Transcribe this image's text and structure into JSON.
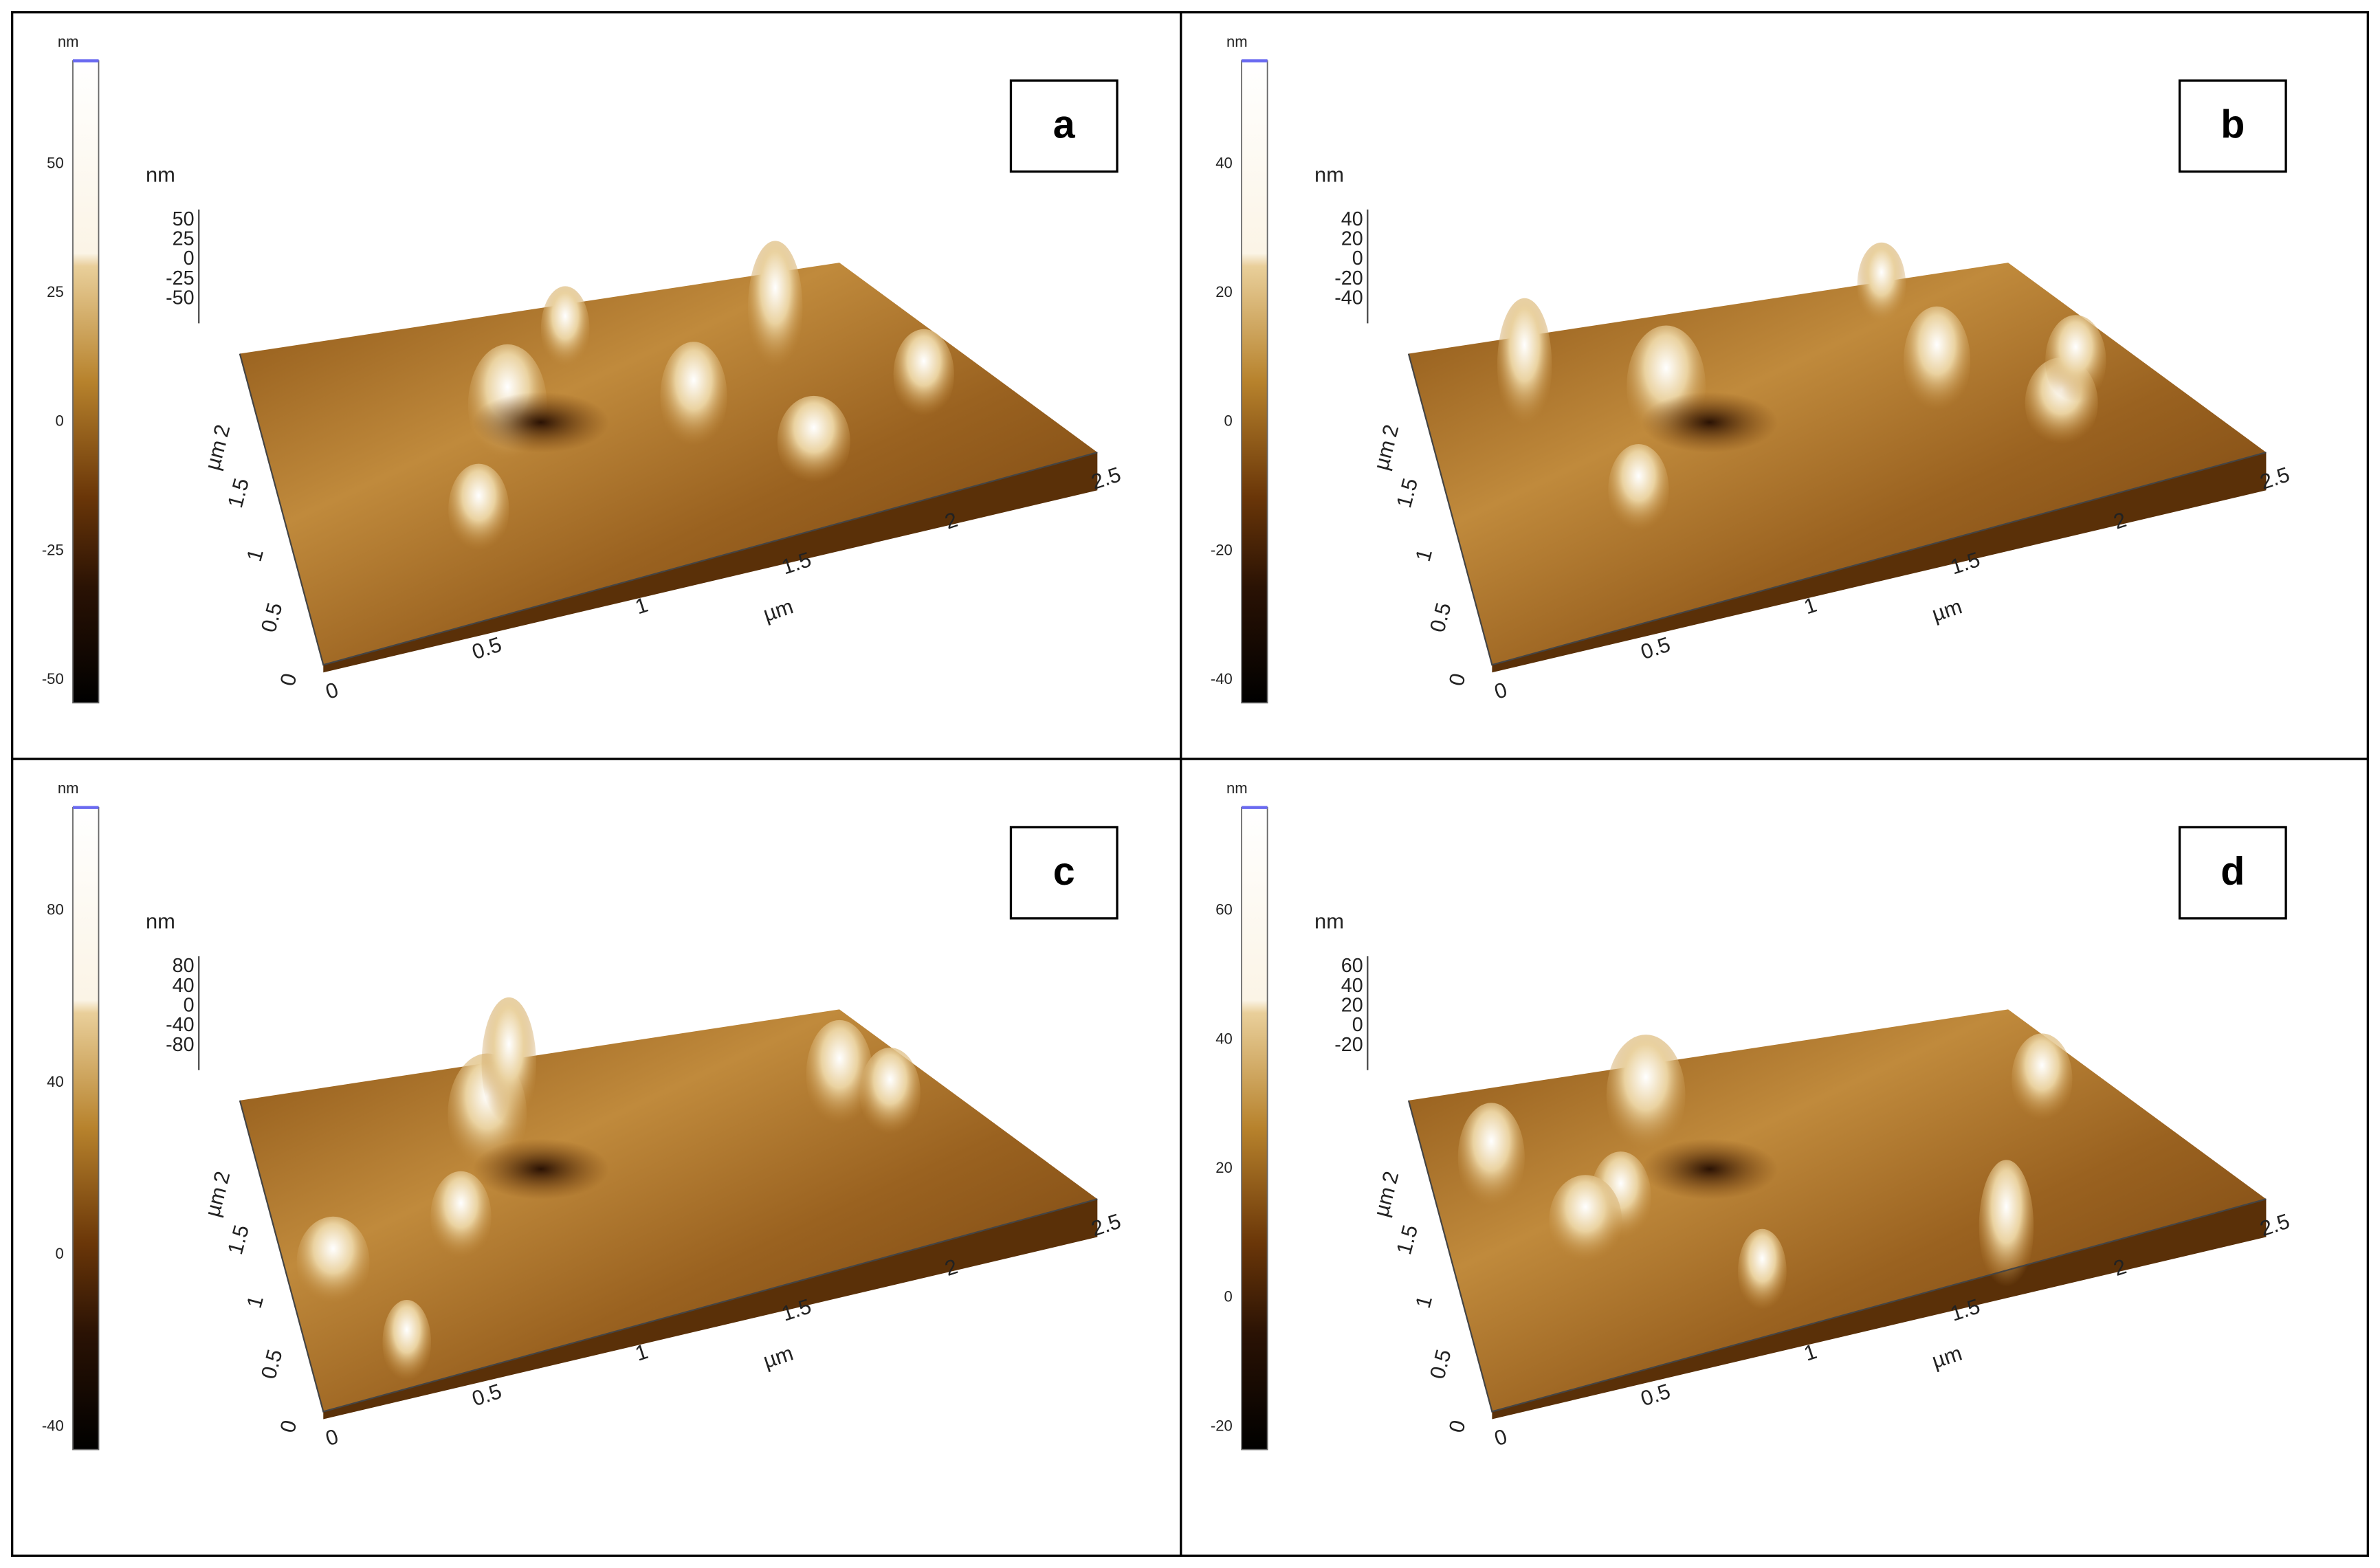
{
  "panels": [
    {
      "label": "a",
      "colorbar": {
        "unit": "nm",
        "ticks": [
          50,
          25,
          0,
          -25,
          -50
        ]
      },
      "z_axis": {
        "unit": "nm",
        "ticks": [
          50,
          25,
          0,
          -25,
          -50
        ]
      },
      "y_axis": {
        "unit": "µm",
        "ticks": [
          0,
          0.5,
          1,
          1.5,
          2
        ]
      },
      "x_axis": {
        "unit": "µm",
        "ticks": [
          0,
          0.5,
          1,
          1.5,
          2,
          2.5
        ]
      }
    },
    {
      "label": "b",
      "colorbar": {
        "unit": "nm",
        "ticks": [
          40,
          20,
          0,
          -20,
          -40
        ]
      },
      "z_axis": {
        "unit": "nm",
        "ticks": [
          40,
          20,
          0,
          -20,
          -40
        ]
      },
      "y_axis": {
        "unit": "µm",
        "ticks": [
          0,
          0.5,
          1,
          1.5,
          2
        ]
      },
      "x_axis": {
        "unit": "µm",
        "ticks": [
          0,
          0.5,
          1,
          1.5,
          2,
          2.5
        ]
      }
    },
    {
      "label": "c",
      "colorbar": {
        "unit": "nm",
        "ticks": [
          80,
          40,
          0,
          -40
        ]
      },
      "z_axis": {
        "unit": "nm",
        "ticks": [
          80,
          40,
          0,
          -40,
          -80
        ]
      },
      "y_axis": {
        "unit": "µm",
        "ticks": [
          0,
          0.5,
          1,
          1.5,
          2
        ]
      },
      "x_axis": {
        "unit": "µm",
        "ticks": [
          0,
          0.5,
          1,
          1.5,
          2,
          2.5
        ]
      }
    },
    {
      "label": "d",
      "colorbar": {
        "unit": "nm",
        "ticks": [
          60,
          40,
          20,
          0,
          -20
        ]
      },
      "z_axis": {
        "unit": "nm",
        "ticks": [
          60,
          40,
          20,
          0,
          -20
        ]
      },
      "y_axis": {
        "unit": "µm",
        "ticks": [
          0,
          0.5,
          1,
          1.5,
          2
        ]
      },
      "x_axis": {
        "unit": "µm",
        "ticks": [
          0,
          0.5,
          1,
          1.5,
          2,
          2.5
        ]
      }
    }
  ]
}
